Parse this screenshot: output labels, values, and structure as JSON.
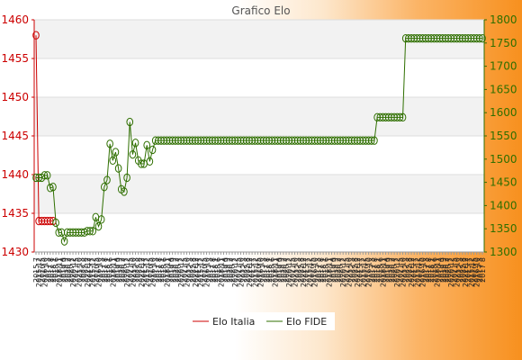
{
  "chart_data": {
    "type": "line",
    "title": "Grafico Elo",
    "y_left": {
      "ticks": [
        1430,
        1435,
        1440,
        1445,
        1450,
        1455,
        1460
      ],
      "range": [
        1430,
        1460
      ],
      "color": "#cc0000"
    },
    "y_right": {
      "ticks": [
        1300,
        1350,
        1400,
        1450,
        1500,
        1550,
        1600,
        1650,
        1700,
        1750,
        1800
      ],
      "range": [
        1300,
        1800
      ],
      "color": "#2f6f00"
    },
    "x_tick_labels": [
      "2015 7",
      "2015 12",
      "2016 5",
      "2016 10",
      "2017 3",
      "2017 8",
      "2018 1",
      "2018 6",
      "2018 11",
      "2019 4",
      "2019 9",
      "2020 2",
      "2020 7",
      "2020 12",
      "2021 5",
      "2021 10",
      "2022 3",
      "2022 8",
      "2022 12"
    ],
    "grid": true,
    "legend": {
      "position": "bottom-center"
    },
    "series": [
      {
        "name": "Elo Italia",
        "axis": "left",
        "color": "#cc0000",
        "values": [
          1458,
          1434,
          1434,
          1434,
          1434,
          1434,
          1434
        ]
      },
      {
        "name": "Elo FIDE",
        "axis": "right",
        "color": "#2f6f00",
        "values": [
          1460,
          1460,
          1460,
          1465,
          1465,
          1438,
          1440,
          1363,
          1342,
          1342,
          1323,
          1342,
          1342,
          1342,
          1342,
          1342,
          1342,
          1342,
          1345,
          1345,
          1345,
          1375,
          1355,
          1370,
          1440,
          1455,
          1533,
          1497,
          1515,
          1480,
          1435,
          1430,
          1460,
          1580,
          1510,
          1535,
          1497,
          1490,
          1490,
          1530,
          1495,
          1520,
          1540,
          1540,
          1540,
          1540,
          1540,
          1540,
          1540,
          1540,
          1540,
          1540,
          1540,
          1540,
          1540,
          1540,
          1540,
          1540,
          1540,
          1540,
          1540,
          1540,
          1540,
          1540,
          1540,
          1540,
          1540,
          1540,
          1540,
          1540,
          1540,
          1540,
          1540,
          1540,
          1540,
          1540,
          1540,
          1540,
          1540,
          1540,
          1540,
          1540,
          1540,
          1540,
          1540,
          1540,
          1540,
          1540,
          1540,
          1540,
          1540,
          1540,
          1540,
          1540,
          1540,
          1540,
          1540,
          1540,
          1540,
          1540,
          1540,
          1540,
          1540,
          1540,
          1540,
          1540,
          1540,
          1540,
          1540,
          1540,
          1540,
          1540,
          1540,
          1540,
          1540,
          1540,
          1540,
          1540,
          1540,
          1540,
          1590,
          1590,
          1590,
          1590,
          1590,
          1590,
          1590,
          1590,
          1590,
          1590,
          1760,
          1760,
          1760,
          1760,
          1760,
          1760,
          1760,
          1760,
          1760,
          1760,
          1760,
          1760,
          1760,
          1760,
          1760,
          1760,
          1760,
          1760,
          1760,
          1760,
          1760,
          1760,
          1760,
          1760,
          1760,
          1760,
          1760,
          1760
        ]
      }
    ]
  }
}
